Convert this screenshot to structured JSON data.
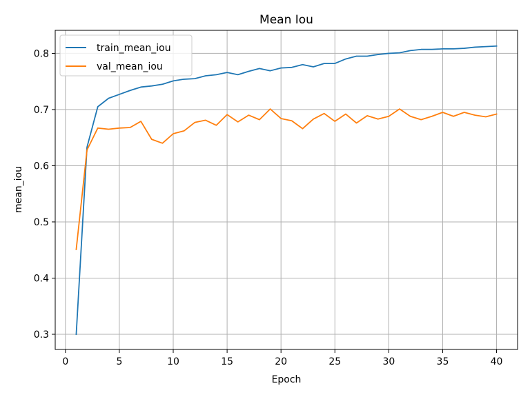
{
  "chart_data": {
    "type": "line",
    "title": "Mean Iou",
    "xlabel": "Epoch",
    "ylabel": "mean_iou",
    "xlim": [
      -0.95,
      41.95
    ],
    "ylim": [
      0.273,
      0.841
    ],
    "xticks": [
      0,
      5,
      10,
      15,
      20,
      25,
      30,
      35,
      40
    ],
    "xtick_labels": [
      "0",
      "5",
      "10",
      "15",
      "20",
      "25",
      "30",
      "35",
      "40"
    ],
    "yticks": [
      0.3,
      0.4,
      0.5,
      0.6,
      0.7,
      0.8
    ],
    "ytick_labels": [
      "0.3",
      "0.4",
      "0.5",
      "0.6",
      "0.7",
      "0.8"
    ],
    "grid": true,
    "legend_position": "top-left",
    "x": [
      1,
      2,
      3,
      4,
      5,
      6,
      7,
      8,
      9,
      10,
      11,
      12,
      13,
      14,
      15,
      16,
      17,
      18,
      19,
      20,
      21,
      22,
      23,
      24,
      25,
      26,
      27,
      28,
      29,
      30,
      31,
      32,
      33,
      34,
      35,
      36,
      37,
      38,
      39,
      40
    ],
    "series": [
      {
        "name": "train_mean_iou",
        "color": "#1f77b4",
        "values": [
          0.3,
          0.633,
          0.705,
          0.72,
          0.727,
          0.734,
          0.74,
          0.742,
          0.745,
          0.751,
          0.754,
          0.755,
          0.76,
          0.762,
          0.766,
          0.762,
          0.768,
          0.773,
          0.769,
          0.774,
          0.775,
          0.78,
          0.776,
          0.782,
          0.782,
          0.79,
          0.795,
          0.795,
          0.798,
          0.8,
          0.801,
          0.805,
          0.807,
          0.807,
          0.808,
          0.808,
          0.809,
          0.811,
          0.812,
          0.813
        ]
      },
      {
        "name": "val_mean_iou",
        "color": "#ff7f0e",
        "values": [
          0.451,
          0.628,
          0.667,
          0.665,
          0.667,
          0.668,
          0.679,
          0.647,
          0.64,
          0.657,
          0.662,
          0.677,
          0.681,
          0.672,
          0.691,
          0.678,
          0.69,
          0.682,
          0.701,
          0.684,
          0.68,
          0.666,
          0.683,
          0.693,
          0.679,
          0.692,
          0.676,
          0.689,
          0.683,
          0.688,
          0.701,
          0.688,
          0.682,
          0.688,
          0.695,
          0.688,
          0.695,
          0.69,
          0.687,
          0.692
        ]
      }
    ]
  }
}
